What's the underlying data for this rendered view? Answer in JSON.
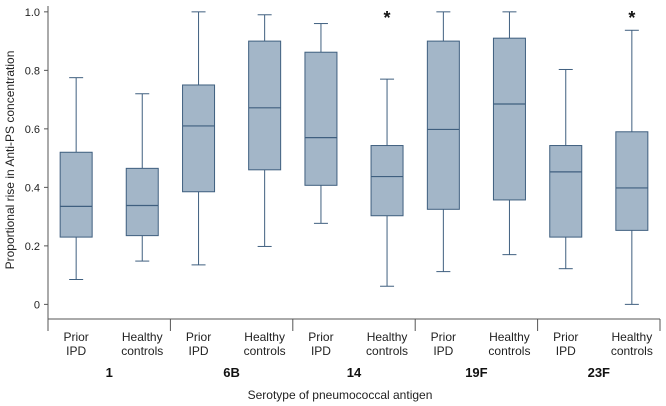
{
  "chart_data": {
    "type": "box",
    "xlabel": "Serotype of pneumococcal antigen",
    "ylabel": "Proportional rise in Anti-PS concentration",
    "ylim": [
      -0.05,
      1.02
    ],
    "yticks": [
      "0",
      "0.2",
      "0.4",
      "0.6",
      "0.8",
      "1.0"
    ],
    "ytick_values": [
      0,
      0.2,
      0.4,
      0.6,
      0.8,
      1.0
    ],
    "group_labels": [
      {
        "line1": "Prior",
        "line2": "IPD"
      },
      {
        "line1": "Healthy",
        "line2": "controls"
      }
    ],
    "box_color": "#a3b6c8",
    "line_color": "#3f5f7f",
    "significance_marker": "*",
    "serotypes": [
      {
        "name": "1",
        "boxes": [
          {
            "group": "Prior IPD",
            "min": 0.085,
            "q1": 0.23,
            "median": 0.335,
            "q3": 0.52,
            "max": 0.775
          },
          {
            "group": "Healthy controls",
            "min": 0.148,
            "q1": 0.235,
            "median": 0.338,
            "q3": 0.465,
            "max": 0.72
          }
        ]
      },
      {
        "name": "6B",
        "boxes": [
          {
            "group": "Prior IPD",
            "min": 0.135,
            "q1": 0.385,
            "median": 0.61,
            "q3": 0.75,
            "max": 1.0
          },
          {
            "group": "Healthy controls",
            "min": 0.198,
            "q1": 0.46,
            "median": 0.672,
            "q3": 0.9,
            "max": 0.99
          }
        ]
      },
      {
        "name": "14",
        "significant": true,
        "boxes": [
          {
            "group": "Prior IPD",
            "min": 0.277,
            "q1": 0.407,
            "median": 0.57,
            "q3": 0.862,
            "max": 0.96
          },
          {
            "group": "Healthy controls",
            "min": 0.062,
            "q1": 0.303,
            "median": 0.437,
            "q3": 0.543,
            "max": 0.77
          }
        ]
      },
      {
        "name": "19F",
        "boxes": [
          {
            "group": "Prior IPD",
            "min": 0.112,
            "q1": 0.325,
            "median": 0.598,
            "q3": 0.9,
            "max": 1.0
          },
          {
            "group": "Healthy controls",
            "min": 0.17,
            "q1": 0.357,
            "median": 0.685,
            "q3": 0.91,
            "max": 1.0
          }
        ]
      },
      {
        "name": "23F",
        "significant": true,
        "boxes": [
          {
            "group": "Prior IPD",
            "min": 0.122,
            "q1": 0.23,
            "median": 0.453,
            "q3": 0.543,
            "max": 0.803
          },
          {
            "group": "Healthy controls",
            "min": 0.0,
            "q1": 0.253,
            "median": 0.398,
            "q3": 0.59,
            "max": 0.937
          }
        ]
      }
    ]
  }
}
